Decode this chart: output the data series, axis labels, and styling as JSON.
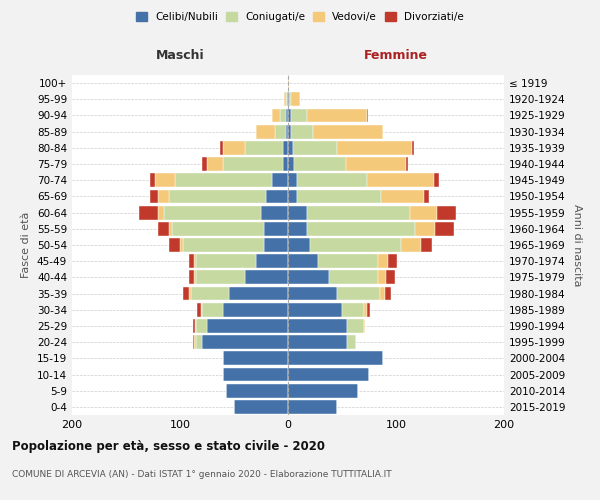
{
  "age_groups": [
    "0-4",
    "5-9",
    "10-14",
    "15-19",
    "20-24",
    "25-29",
    "30-34",
    "35-39",
    "40-44",
    "45-49",
    "50-54",
    "55-59",
    "60-64",
    "65-69",
    "70-74",
    "75-79",
    "80-84",
    "85-89",
    "90-94",
    "95-99",
    "100+"
  ],
  "birth_years": [
    "2015-2019",
    "2010-2014",
    "2005-2009",
    "2000-2004",
    "1995-1999",
    "1990-1994",
    "1985-1989",
    "1980-1984",
    "1975-1979",
    "1970-1974",
    "1965-1969",
    "1960-1964",
    "1955-1959",
    "1950-1954",
    "1945-1949",
    "1940-1944",
    "1935-1939",
    "1930-1934",
    "1925-1929",
    "1920-1924",
    "≤ 1919"
  ],
  "colors": {
    "celibi": "#4472a8",
    "coniugati": "#c5d9a0",
    "vedovi": "#f5c97a",
    "divorziati": "#c0392b"
  },
  "males": {
    "celibi": [
      50,
      57,
      60,
      60,
      80,
      75,
      60,
      55,
      40,
      30,
      22,
      22,
      25,
      20,
      15,
      5,
      5,
      2,
      2,
      1,
      0
    ],
    "coniugati": [
      0,
      0,
      0,
      0,
      5,
      10,
      20,
      35,
      45,
      55,
      75,
      85,
      90,
      90,
      90,
      55,
      35,
      10,
      5,
      1,
      0
    ],
    "vedovi": [
      0,
      0,
      0,
      0,
      2,
      1,
      1,
      2,
      2,
      2,
      3,
      3,
      5,
      10,
      18,
      15,
      20,
      18,
      8,
      2,
      0
    ],
    "divorziati": [
      0,
      0,
      0,
      0,
      1,
      2,
      3,
      5,
      5,
      5,
      10,
      10,
      18,
      8,
      5,
      5,
      3,
      0,
      0,
      0,
      0
    ]
  },
  "females": {
    "celibi": [
      45,
      65,
      75,
      88,
      55,
      55,
      50,
      45,
      38,
      28,
      20,
      18,
      18,
      8,
      8,
      6,
      5,
      3,
      3,
      1,
      0
    ],
    "coniugati": [
      0,
      0,
      0,
      0,
      8,
      15,
      20,
      40,
      45,
      55,
      85,
      100,
      95,
      78,
      65,
      48,
      40,
      20,
      15,
      2,
      0
    ],
    "vedovi": [
      0,
      0,
      0,
      0,
      0,
      1,
      3,
      5,
      8,
      10,
      18,
      18,
      25,
      40,
      62,
      55,
      70,
      65,
      55,
      8,
      1
    ],
    "divorziati": [
      0,
      0,
      0,
      0,
      0,
      0,
      3,
      5,
      8,
      8,
      10,
      18,
      18,
      5,
      5,
      2,
      2,
      0,
      1,
      0,
      0
    ]
  },
  "xlim": 200,
  "title": "Popolazione per età, sesso e stato civile - 2020",
  "subtitle": "COMUNE DI ARCEVIA (AN) - Dati ISTAT 1° gennaio 2020 - Elaborazione TUTTITALIA.IT",
  "xlabel_left": "Maschi",
  "xlabel_right": "Femmine",
  "ylabel": "Fasce di età",
  "ylabel_right": "Anni di nascita",
  "legend_labels": [
    "Celibi/Nubili",
    "Coniugati/e",
    "Vedovi/e",
    "Divorziati/e"
  ],
  "bg_color": "#f2f2f2",
  "plot_bg": "#ffffff"
}
